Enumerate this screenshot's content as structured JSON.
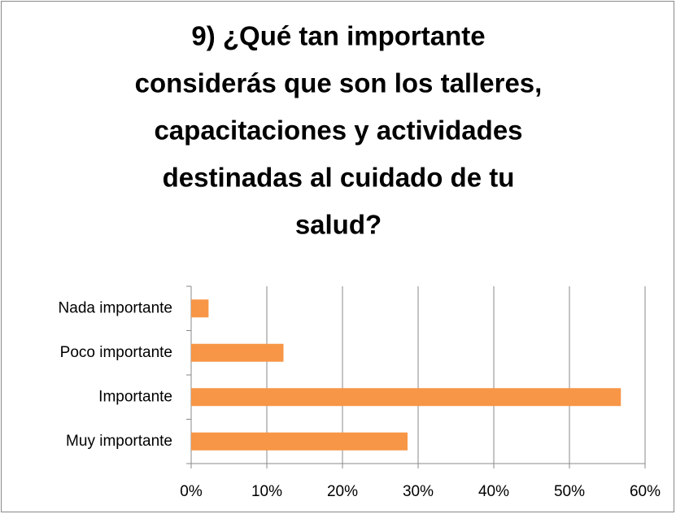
{
  "chart_data": {
    "type": "bar",
    "orientation": "horizontal",
    "title": [
      "9) ¿Qué tan importante",
      "considerás que son los talleres,",
      "capacitaciones y actividades",
      "destinadas al cuidado de tu",
      "salud?"
    ],
    "categories": [
      "Nada importante",
      "Poco importante",
      "Importante",
      "Muy importante"
    ],
    "values": [
      2.3,
      12.2,
      56.8,
      28.6
    ],
    "color": "#f79646",
    "xlim": [
      0,
      60
    ],
    "xticks": [
      {
        "value": 0,
        "label": "0%"
      },
      {
        "value": 10,
        "label": "10%"
      },
      {
        "value": 20,
        "label": "20%"
      },
      {
        "value": 30,
        "label": "30%"
      },
      {
        "value": 40,
        "label": "40%"
      },
      {
        "value": 50,
        "label": "50%"
      },
      {
        "value": 60,
        "label": "60%"
      }
    ],
    "grid": true
  }
}
